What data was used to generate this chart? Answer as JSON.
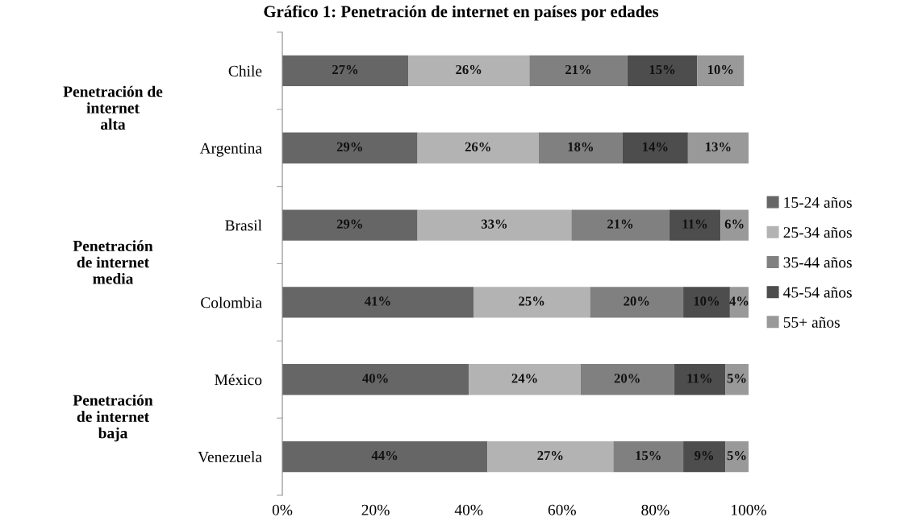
{
  "chart_data": {
    "type": "bar",
    "orientation": "horizontal",
    "stacked": true,
    "title": "Gráfico 1: Penetración de internet en países por edades",
    "categories": [
      "Chile",
      "Argentina",
      "Brasil",
      "Colombia",
      "México",
      "Venezuela"
    ],
    "series": [
      {
        "name": "15-24 años",
        "color": "#666666",
        "values": [
          27,
          29,
          29,
          41,
          40,
          44
        ],
        "value_labels": [
          "27%",
          "29%",
          "29%",
          "41%",
          "40%",
          "44%"
        ]
      },
      {
        "name": "25-34 años",
        "color": "#b3b3b3",
        "values": [
          26,
          26,
          33,
          25,
          24,
          27
        ],
        "value_labels": [
          "26%",
          "26%",
          "33%",
          "25%",
          "24%",
          "27%"
        ]
      },
      {
        "name": "35-44 años",
        "color": "#808080",
        "values": [
          21,
          18,
          21,
          20,
          20,
          15
        ],
        "value_labels": [
          "21%",
          "18%",
          "21%",
          "20%",
          "20%",
          "15%"
        ]
      },
      {
        "name": "45-54 años",
        "color": "#4d4d4d",
        "values": [
          15,
          14,
          11,
          10,
          11,
          9
        ],
        "value_labels": [
          "15%",
          "14%",
          "11%",
          "10%",
          "11%",
          "9%"
        ]
      },
      {
        "name": "55+ años",
        "color": "#999999",
        "values": [
          10,
          13,
          6,
          4,
          5,
          5
        ],
        "value_labels": [
          "10%",
          "13%",
          "6%",
          "4%",
          "5%",
          "5%"
        ]
      }
    ],
    "xlim": [
      0,
      100
    ],
    "xticks": [
      {
        "value": 0,
        "label": "0%"
      },
      {
        "value": 20,
        "label": "20%"
      },
      {
        "value": 40,
        "label": "40%"
      },
      {
        "value": 60,
        "label": "60%"
      },
      {
        "value": 80,
        "label": "80%"
      },
      {
        "value": 100,
        "label": "100%"
      }
    ],
    "annotations": [
      "Penetración de\ninternet\nalta",
      "Penetración\nde internet\nmedia",
      "Penetración\nde internet\nbaja"
    ],
    "grid": false,
    "legend": "right"
  }
}
